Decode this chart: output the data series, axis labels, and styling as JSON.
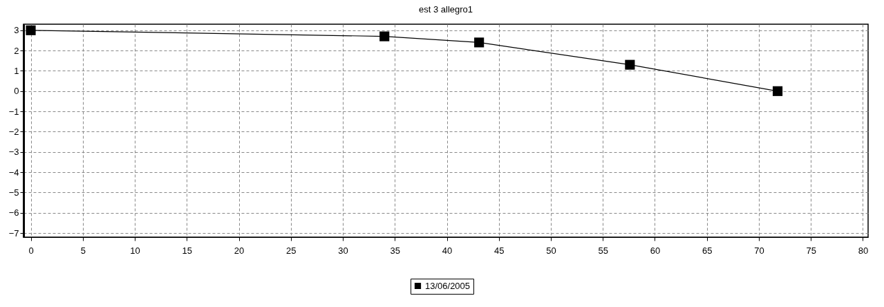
{
  "chart_data": {
    "type": "line",
    "title": "est 3 allegro1",
    "x": [
      0,
      34,
      43.1,
      57.6,
      71.8
    ],
    "series": [
      {
        "name": "13/06/2005",
        "color": "#000000",
        "values": [
          3,
          2.7,
          2.4,
          1.3,
          0
        ]
      }
    ],
    "xlim": [
      -0.7,
      80.5
    ],
    "xticks": [
      0,
      5,
      10,
      15,
      20,
      25,
      30,
      35,
      40,
      45,
      50,
      55,
      60,
      65,
      70,
      75,
      80
    ],
    "ylim": [
      -7.2,
      3.3
    ],
    "yticks": [
      -7,
      -6,
      -5,
      -4,
      -3,
      -2,
      -1,
      0,
      1,
      2,
      3
    ],
    "grid": true,
    "legend": "bottom",
    "marker": "square",
    "line_style": "solid"
  }
}
